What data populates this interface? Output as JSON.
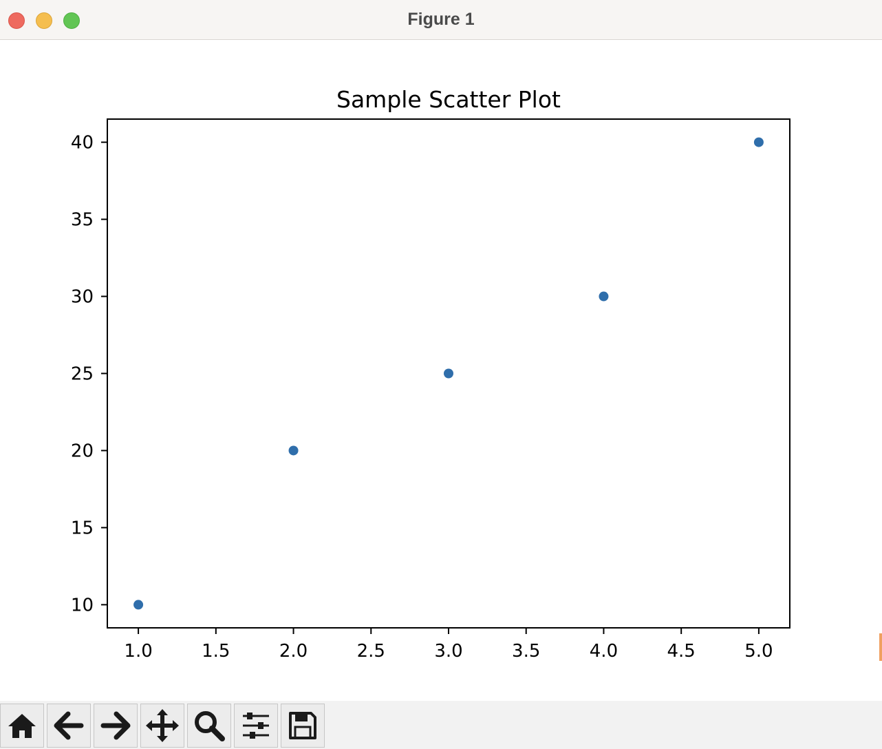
{
  "window": {
    "title": "Figure 1"
  },
  "toolbar": {
    "buttons": [
      {
        "name": "home-button",
        "icon": "home-icon"
      },
      {
        "name": "back-button",
        "icon": "arrow-left-icon"
      },
      {
        "name": "forward-button",
        "icon": "arrow-right-icon"
      },
      {
        "name": "pan-button",
        "icon": "move-icon"
      },
      {
        "name": "zoom-button",
        "icon": "magnifier-icon"
      },
      {
        "name": "configure-subplots-button",
        "icon": "sliders-icon"
      },
      {
        "name": "save-button",
        "icon": "floppy-disk-icon"
      }
    ]
  },
  "colors": {
    "marker": "#2f6eab",
    "axes": "#000000"
  },
  "chart_data": {
    "type": "scatter",
    "title": "Sample Scatter Plot",
    "xlabel": "",
    "ylabel": "",
    "x": [
      1,
      2,
      3,
      4,
      5
    ],
    "y": [
      10,
      20,
      25,
      30,
      40
    ],
    "xlim": [
      0.8,
      5.2
    ],
    "ylim": [
      8.5,
      41.5
    ],
    "xticks": [
      1.0,
      1.5,
      2.0,
      2.5,
      3.0,
      3.5,
      4.0,
      4.5,
      5.0
    ],
    "xtick_labels": [
      "1.0",
      "1.5",
      "2.0",
      "2.5",
      "3.0",
      "3.5",
      "4.0",
      "4.5",
      "5.0"
    ],
    "yticks": [
      10,
      15,
      20,
      25,
      30,
      35,
      40
    ],
    "ytick_labels": [
      "10",
      "15",
      "20",
      "25",
      "30",
      "35",
      "40"
    ],
    "grid": false,
    "legend": "none"
  }
}
